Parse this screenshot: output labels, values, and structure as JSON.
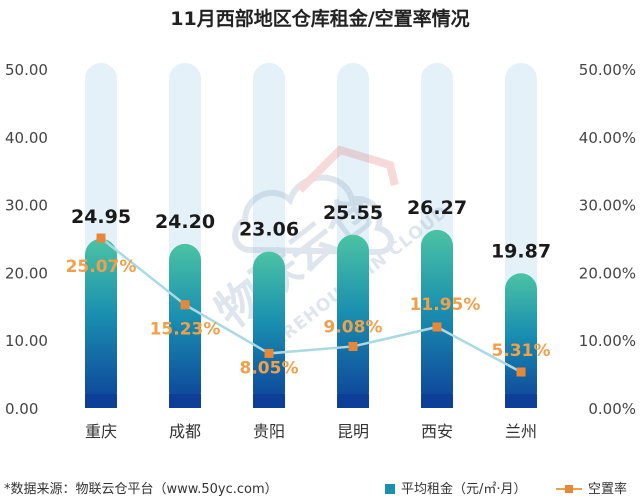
{
  "chart_data": {
    "type": "bar",
    "title": "11月西部地区仓库租金/空置率情况",
    "categories": [
      "重庆",
      "成都",
      "贵阳",
      "昆明",
      "西安",
      "兰州"
    ],
    "series": [
      {
        "name": "平均租金（元/㎡·月）",
        "type": "bar",
        "axis": "left",
        "values": [
          24.95,
          24.2,
          23.06,
          25.55,
          26.27,
          19.87
        ],
        "labels": [
          "24.95",
          "24.20",
          "23.06",
          "25.55",
          "26.27",
          "19.87"
        ]
      },
      {
        "name": "空置率",
        "type": "line",
        "axis": "right",
        "values": [
          25.07,
          15.23,
          8.05,
          9.08,
          11.95,
          5.31
        ],
        "labels": [
          "25.07%",
          "15.23%",
          "8.05%",
          "9.08%",
          "11.95%",
          "5.31%"
        ]
      }
    ],
    "left_axis": {
      "ylim": [
        0,
        50
      ],
      "ticks": [
        "0.00",
        "10.00",
        "20.00",
        "30.00",
        "40.00",
        "50.00"
      ]
    },
    "right_axis": {
      "ylim": [
        0,
        50
      ],
      "ticks": [
        "0.00%",
        "10.00%",
        "20.00%",
        "30.00%",
        "40.00%",
        "50.00%"
      ]
    },
    "grid": false,
    "legend_position": "bottom-right",
    "colors": {
      "bar_top": "#4bc3a3",
      "bar_mid": "#1a8fb0",
      "bar_bottom": "#0d3f99",
      "bar_track": "#e4f1f9",
      "line": "#a9d9e2",
      "marker": "#e8863a",
      "rate_label": "#f0a04b",
      "value_label": "#1a1a1a",
      "watermark": "#8fa3bd"
    }
  },
  "watermark": {
    "main": "物联云仓",
    "sub": "WAREHOUSE IN CLOUD"
  },
  "footer": {
    "source": "*数据来源：物联云仓平台（www.50yc.com）",
    "legend_bar": "平均租金（元/㎡·月）",
    "legend_line": "空置率"
  }
}
